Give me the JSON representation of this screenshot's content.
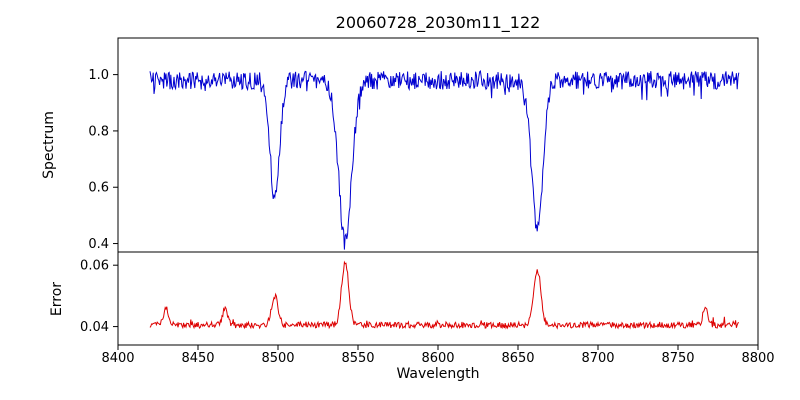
{
  "chart_data": {
    "type": "line",
    "title": "20060728_2030m11_122",
    "xlabel": "Wavelength",
    "x_axis_range": [
      8400,
      8800
    ],
    "x_ticks": [
      8400,
      8450,
      8500,
      8550,
      8600,
      8650,
      8700,
      8750,
      8800
    ],
    "x_data_range": [
      8420,
      8788
    ],
    "x_step": 0.5,
    "background_color": "#ffffff",
    "frame_color": "#000000",
    "seed": 20060728,
    "panels": [
      {
        "name": "spectrum",
        "ylabel": "Spectrum",
        "line_color": "#0000d0",
        "ylim": [
          0.37,
          1.13
        ],
        "y_ticks": [
          1.0,
          0.8,
          0.6,
          0.4
        ],
        "y_tick_labels": [
          "1.0",
          "0.8",
          "0.6",
          "0.4"
        ],
        "continuum_level": 0.98,
        "noise_amplitude": 0.033,
        "spike_probability": 0.05,
        "spike_depth": 0.05,
        "absorption_lines": [
          {
            "center": 8498,
            "depth": 0.42,
            "sigma": 3.0
          },
          {
            "center": 8542,
            "depth": 0.575,
            "sigma": 4.0
          },
          {
            "center": 8662,
            "depth": 0.535,
            "sigma": 3.5
          }
        ]
      },
      {
        "name": "error",
        "ylabel": "Error",
        "line_color": "#dd0000",
        "ylim": [
          0.034,
          0.0643
        ],
        "y_ticks": [
          0.06,
          0.04
        ],
        "y_tick_labels": [
          "0.06",
          "0.04"
        ],
        "baseline_level": 0.0405,
        "noise_amplitude": 0.001,
        "spike_probability": 0.04,
        "spike_depth": 0.0018,
        "peaks": [
          {
            "center": 8430,
            "height": 0.0055,
            "sigma": 1.5
          },
          {
            "center": 8467,
            "height": 0.0055,
            "sigma": 1.5
          },
          {
            "center": 8498,
            "height": 0.0095,
            "sigma": 2.0
          },
          {
            "center": 8542,
            "height": 0.0205,
            "sigma": 2.2
          },
          {
            "center": 8662,
            "height": 0.0175,
            "sigma": 2.2
          },
          {
            "center": 8767,
            "height": 0.0055,
            "sigma": 1.5
          }
        ]
      }
    ]
  }
}
